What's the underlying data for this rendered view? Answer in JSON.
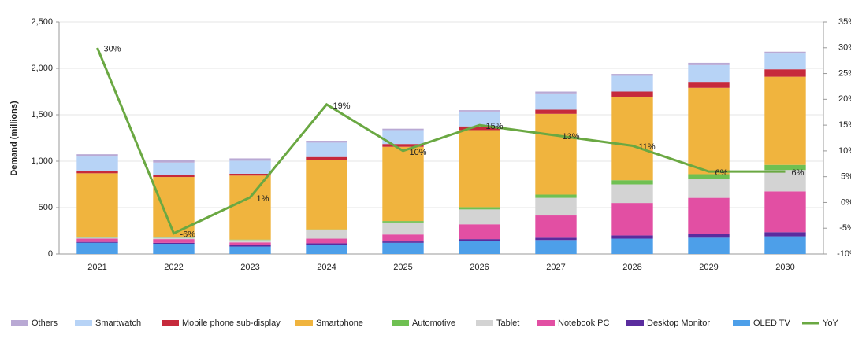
{
  "chart_data": {
    "type": "stacked_bar_line",
    "y_label": "Demand (millions)",
    "categories": [
      "2021",
      "2022",
      "2023",
      "2024",
      "2025",
      "2026",
      "2027",
      "2028",
      "2029",
      "2030"
    ],
    "ylim": [
      0,
      2500
    ],
    "yticks": [
      0,
      {
        "value": 500,
        "label": "500"
      },
      {
        "value": 1000,
        "label": "1,000"
      },
      {
        "value": 1500,
        "label": "1,500"
      },
      {
        "value": 2000,
        "label": "2,000"
      },
      {
        "value": 2500,
        "label": "2,500"
      }
    ],
    "y2lim": [
      -10,
      35
    ],
    "y2ticks": [
      {
        "value": -10,
        "label": "-10%"
      },
      {
        "value": -5,
        "label": "-5%"
      },
      {
        "value": 0,
        "label": "0%"
      },
      {
        "value": 5,
        "label": "5%"
      },
      {
        "value": 10,
        "label": "10%"
      },
      {
        "value": 15,
        "label": "15%"
      },
      {
        "value": 20,
        "label": "20%"
      },
      {
        "value": 25,
        "label": "25%"
      },
      {
        "value": 30,
        "label": "30%"
      },
      {
        "value": 35,
        "label": "35%"
      }
    ],
    "grid": true,
    "legend": "bottom",
    "series": [
      {
        "name": "Others",
        "color": "#b9a9d4",
        "values": [
          25,
          25,
          25,
          20,
          15,
          15,
          20,
          20,
          25,
          20
        ]
      },
      {
        "name": "Smartwatch",
        "color": "#b7d3f6",
        "values": [
          160,
          130,
          140,
          155,
          150,
          160,
          175,
          170,
          180,
          170
        ]
      },
      {
        "name": "Mobile phone sub-display",
        "color": "#c62a3c",
        "values": [
          20,
          25,
          20,
          30,
          30,
          40,
          45,
          55,
          65,
          80
        ]
      },
      {
        "name": "Smartphone",
        "color": "#f0b43e",
        "values": [
          690,
          650,
          690,
          750,
          800,
          830,
          870,
          900,
          930,
          950
        ]
      },
      {
        "name": "Automotive",
        "color": "#6fc052",
        "values": [
          5,
          5,
          5,
          10,
          15,
          25,
          35,
          45,
          55,
          55
        ]
      },
      {
        "name": "Tablet",
        "color": "#d3d3d3",
        "values": [
          10,
          15,
          25,
          90,
          130,
          160,
          190,
          200,
          200,
          230
        ]
      },
      {
        "name": "Notebook PC",
        "color": "#e24fa3",
        "values": [
          35,
          40,
          30,
          50,
          75,
          160,
          240,
          350,
          390,
          440
        ]
      },
      {
        "name": "Desktop Monitor",
        "color": "#5a2c9e",
        "values": [
          10,
          10,
          15,
          15,
          15,
          20,
          25,
          35,
          40,
          45
        ]
      },
      {
        "name": "OLED TV",
        "color": "#4d9fe9",
        "values": [
          120,
          110,
          80,
          100,
          120,
          140,
          150,
          165,
          175,
          190
        ]
      },
      {
        "name": "YoY",
        "color": "#6aa842",
        "axis": "y2",
        "values": [
          30,
          -6,
          1,
          19,
          10,
          15,
          13,
          11,
          6,
          6
        ],
        "value_labels": [
          "30%",
          "-6%",
          "1%",
          "19%",
          "10%",
          "15%",
          "13%",
          "11%",
          "6%",
          "6%"
        ]
      }
    ]
  }
}
